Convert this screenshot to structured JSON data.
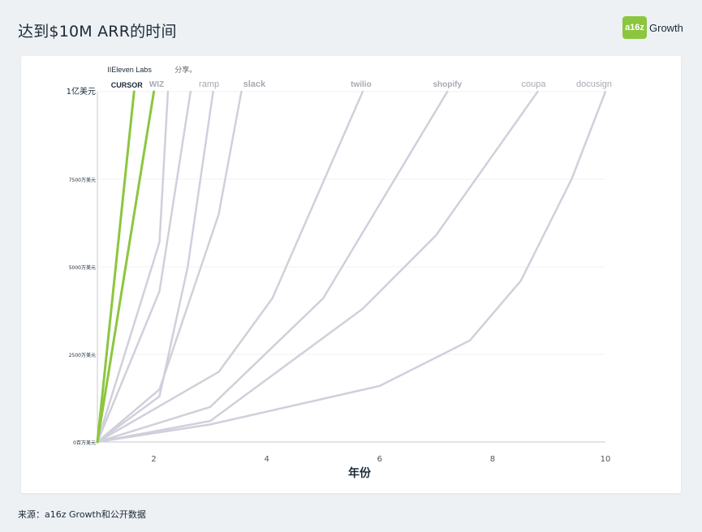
{
  "header": {
    "title": "达到$10M ARR的时间",
    "logo": {
      "mark": "a16z",
      "word": "Growth",
      "color": "#8cc63f"
    }
  },
  "footer": {
    "source": "来源：a16z Growth和公开数据"
  },
  "chart_data": {
    "type": "line",
    "title": "",
    "xlabel": "年份",
    "ylabel": "",
    "xlim": [
      1,
      10
    ],
    "ylim": [
      0,
      100
    ],
    "x_ticks": [
      2,
      4,
      6,
      8,
      10
    ],
    "y_ticks": [
      0,
      25,
      50,
      75,
      100
    ],
    "y_tick_labels": [
      "0百万美元",
      "2500万美元",
      "5000万美元",
      "7500万美元",
      "1亿美元"
    ],
    "grid": "horizontal",
    "highlight_color": "#8cc63f",
    "base_color": "#d0d0dc",
    "series": [
      {
        "name": "CURSOR",
        "highlight": true,
        "x": [
          1,
          1.65
        ],
        "y": [
          0,
          100
        ]
      },
      {
        "name": "IIEleven Labs",
        "highlight": true,
        "x": [
          1,
          2.0
        ],
        "y": [
          0,
          100
        ]
      },
      {
        "name": "WIZ",
        "highlight": false,
        "x": [
          1,
          2.1,
          2.25
        ],
        "y": [
          0,
          57,
          100
        ]
      },
      {
        "name": "分享。",
        "highlight": false,
        "x": [
          1,
          2.1,
          2.65
        ],
        "y": [
          0,
          43,
          100
        ]
      },
      {
        "name": "ramp",
        "highlight": false,
        "x": [
          1,
          2.1,
          2.6,
          3.05
        ],
        "y": [
          0,
          13,
          50,
          100
        ]
      },
      {
        "name": "slack",
        "highlight": false,
        "x": [
          1,
          2.1,
          3.15,
          3.55
        ],
        "y": [
          0,
          15,
          65,
          100
        ]
      },
      {
        "name": "twilio",
        "highlight": false,
        "x": [
          1,
          3.15,
          4.1,
          5.7
        ],
        "y": [
          0,
          20,
          41,
          100
        ]
      },
      {
        "name": "shopify",
        "highlight": false,
        "x": [
          1,
          3.0,
          5.0,
          7.2
        ],
        "y": [
          0,
          10,
          41,
          100
        ]
      },
      {
        "name": "coupa",
        "highlight": false,
        "x": [
          1,
          3.0,
          5.7,
          7.0,
          8.8
        ],
        "y": [
          0,
          6,
          38,
          59,
          100
        ]
      },
      {
        "name": "docusign",
        "highlight": false,
        "x": [
          1,
          3.0,
          6.0,
          7.6,
          8.5,
          9.4,
          10.0
        ],
        "y": [
          0,
          5,
          16,
          29,
          46,
          75,
          100
        ]
      }
    ]
  }
}
